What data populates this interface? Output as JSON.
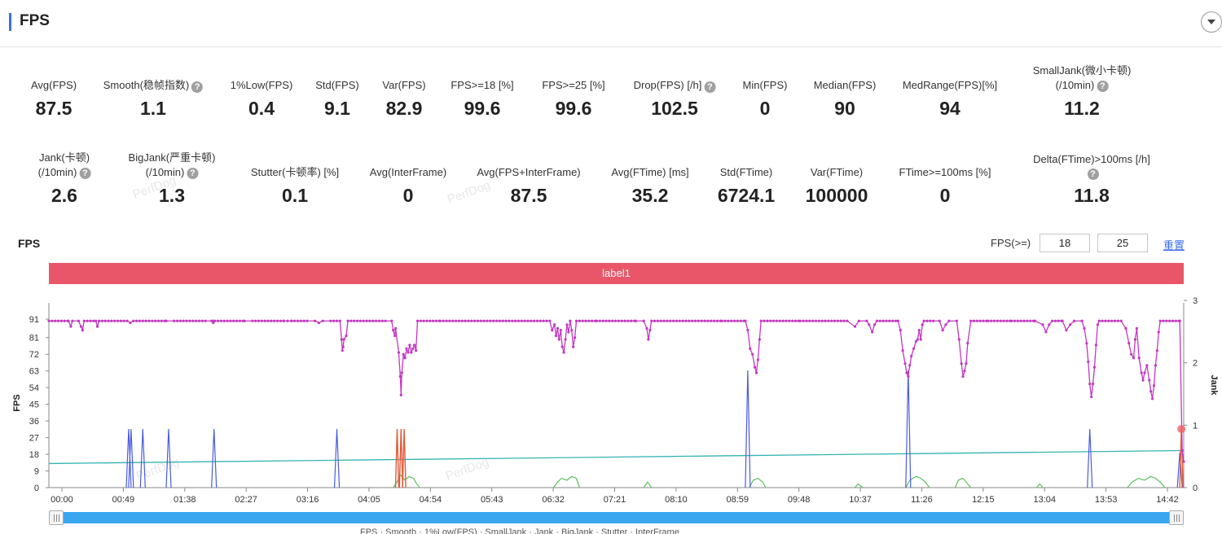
{
  "header": {
    "title": "FPS"
  },
  "metrics_row1": [
    {
      "label": "Avg(FPS)",
      "value": "87.5"
    },
    {
      "label": "Smooth(稳帧指数)",
      "value": "1.1",
      "help": true
    },
    {
      "label": "1%Low(FPS)",
      "value": "0.4"
    },
    {
      "label": "Std(FPS)",
      "value": "9.1"
    },
    {
      "label": "Var(FPS)",
      "value": "82.9"
    },
    {
      "label": "FPS>=18 [%]",
      "value": "99.6"
    },
    {
      "label": "FPS>=25 [%]",
      "value": "99.6"
    },
    {
      "label": "Drop(FPS) [/h]",
      "value": "102.5",
      "help": true
    },
    {
      "label": "Min(FPS)",
      "value": "0"
    },
    {
      "label": "Median(FPS)",
      "value": "90"
    },
    {
      "label": "MedRange(FPS)[%]",
      "value": "94"
    },
    {
      "label": "SmallJank(微小卡顿)",
      "label2": "(/10min)",
      "value": "11.2",
      "help": true
    }
  ],
  "metrics_row2": [
    {
      "label": "Jank(卡顿)",
      "label2": "(/10min)",
      "value": "2.6",
      "help": true
    },
    {
      "label": "BigJank(严重卡顿)",
      "label2": "(/10min)",
      "value": "1.3",
      "help": true
    },
    {
      "label": "Stutter(卡顿率) [%]",
      "value": "0.1"
    },
    {
      "label": "Avg(InterFrame)",
      "value": "0"
    },
    {
      "label": "Avg(FPS+InterFrame)",
      "value": "87.5"
    },
    {
      "label": "Avg(FTime) [ms]",
      "value": "35.2"
    },
    {
      "label": "Std(FTime)",
      "value": "6724.1"
    },
    {
      "label": "Var(FTime)",
      "value": "100000"
    },
    {
      "label": "FTime>=100ms [%]",
      "value": "0"
    },
    {
      "label": "Delta(FTime)>100ms [/h]",
      "value": "11.8",
      "help": true
    }
  ],
  "watermark": "PerfDog",
  "chart_section": {
    "title": "FPS",
    "threshold_label": "FPS(>=)",
    "threshold_1": "18",
    "threshold_2": "25",
    "reset_label": "重置",
    "label_bar": "label1"
  },
  "legend_strip": "FPS   ·   Smooth   ·   1%Low(FPS)   ·   SmallJank   ·   Jank   ·   BigJank   ·   Stutter   ·   InterFrame",
  "colors": {
    "fps": "#c438c0",
    "jank": "#4a5be0",
    "bigjank": "#e05a3a",
    "smooth": "#5cc05c",
    "trend": "#35b3b3",
    "label_bar": "#e9566a",
    "slider": "#3aa6ef"
  },
  "chart_data": {
    "type": "line",
    "xlabel": "",
    "ylabel": "FPS",
    "y2label": "Jank",
    "x_ticks": [
      "00:00",
      "00:49",
      "01:38",
      "02:27",
      "03:16",
      "04:05",
      "04:54",
      "05:43",
      "06:32",
      "07:21",
      "08:10",
      "08:59",
      "09:48",
      "10:37",
      "11:26",
      "12:15",
      "13:04",
      "13:53",
      "14:42"
    ],
    "y_ticks": [
      0,
      9,
      18,
      27,
      36,
      45,
      54,
      63,
      72,
      81,
      91
    ],
    "y2_ticks": [
      0,
      1,
      2,
      3
    ],
    "ylim": [
      0,
      91
    ],
    "y2lim": [
      0,
      3
    ],
    "x_range_seconds": [
      0,
      930
    ],
    "series": [
      {
        "name": "FPS",
        "color": "#c438c0",
        "points": [
          [
            0,
            90
          ],
          [
            25,
            90
          ],
          [
            28,
            87
          ],
          [
            30,
            90
          ],
          [
            38,
            90
          ],
          [
            41,
            87
          ],
          [
            43,
            85
          ],
          [
            45,
            90
          ],
          [
            60,
            90
          ],
          [
            62,
            87
          ],
          [
            64,
            90
          ],
          [
            100,
            90
          ],
          [
            104,
            89
          ],
          [
            108,
            90
          ],
          [
            150,
            90
          ],
          [
            160,
            90
          ],
          [
            200,
            90
          ],
          [
            210,
            90
          ],
          [
            250,
            90
          ],
          [
            260,
            90
          ],
          [
            300,
            90
          ],
          [
            310,
            90
          ],
          [
            208,
            90
          ],
          [
            210,
            89
          ],
          [
            212,
            90
          ],
          [
            300,
            90
          ],
          [
            305,
            90
          ],
          [
            310,
            90
          ],
          [
            330,
            90
          ],
          [
            340,
            90
          ],
          [
            345,
            89
          ],
          [
            350,
            90
          ],
          [
            360,
            90
          ],
          [
            372,
            90
          ],
          [
            374,
            80
          ],
          [
            375,
            74
          ],
          [
            376,
            76
          ],
          [
            377,
            80
          ],
          [
            380,
            82
          ],
          [
            382,
            90
          ],
          [
            410,
            90
          ],
          [
            430,
            90
          ],
          [
            438,
            90
          ],
          [
            440,
            85
          ],
          [
            442,
            82
          ],
          [
            443,
            86
          ],
          [
            447,
            73
          ],
          [
            449,
            60
          ],
          [
            450,
            50
          ],
          [
            451,
            62
          ],
          [
            453,
            72
          ],
          [
            455,
            70
          ],
          [
            457,
            75
          ],
          [
            459,
            73
          ],
          [
            461,
            77
          ],
          [
            463,
            73
          ],
          [
            465,
            75
          ],
          [
            467,
            77
          ],
          [
            469,
            74
          ],
          [
            471,
            90
          ],
          [
            500,
            90
          ],
          [
            560,
            90
          ],
          [
            600,
            90
          ],
          [
            640,
            90
          ],
          [
            643,
            85
          ],
          [
            646,
            88
          ],
          [
            648,
            82
          ],
          [
            650,
            86
          ],
          [
            652,
            80
          ],
          [
            654,
            85
          ],
          [
            656,
            76
          ],
          [
            658,
            73
          ],
          [
            660,
            80
          ],
          [
            662,
            88
          ],
          [
            664,
            84
          ],
          [
            666,
            90
          ],
          [
            668,
            85
          ],
          [
            670,
            76
          ],
          [
            672,
            81
          ],
          [
            674,
            90
          ],
          [
            700,
            90
          ],
          [
            750,
            90
          ],
          [
            760,
            90
          ],
          [
            764,
            86
          ],
          [
            766,
            80
          ],
          [
            768,
            85
          ],
          [
            770,
            90
          ],
          [
            830,
            90
          ],
          [
            860,
            90
          ],
          [
            890,
            90
          ],
          [
            893,
            85
          ],
          [
            896,
            75
          ],
          [
            899,
            72
          ],
          [
            902,
            65
          ],
          [
            904,
            62
          ],
          [
            906,
            69
          ],
          [
            908,
            80
          ],
          [
            910,
            90
          ],
          [
            960,
            90
          ],
          [
            1000,
            90
          ],
          [
            1020,
            90
          ],
          [
            1030,
            87
          ],
          [
            1035,
            90
          ],
          [
            1045,
            90
          ],
          [
            1048,
            88
          ],
          [
            1052,
            84
          ],
          [
            1055,
            88
          ],
          [
            1058,
            90
          ],
          [
            1085,
            90
          ],
          [
            1088,
            85
          ],
          [
            1091,
            74
          ],
          [
            1094,
            67
          ],
          [
            1096,
            62
          ],
          [
            1098,
            60
          ],
          [
            1100,
            66
          ],
          [
            1102,
            71
          ],
          [
            1105,
            75
          ],
          [
            1108,
            79
          ],
          [
            1110,
            80
          ],
          [
            1112,
            85
          ],
          [
            1114,
            80
          ],
          [
            1116,
            88
          ],
          [
            1118,
            90
          ],
          [
            1130,
            90
          ],
          [
            1138,
            90
          ],
          [
            1142,
            85
          ],
          [
            1146,
            88
          ],
          [
            1150,
            90
          ],
          [
            1160,
            90
          ],
          [
            1163,
            80
          ],
          [
            1166,
            67
          ],
          [
            1168,
            60
          ],
          [
            1170,
            63
          ],
          [
            1172,
            67
          ],
          [
            1174,
            78
          ],
          [
            1178,
            90
          ],
          [
            1200,
            90
          ],
          [
            1230,
            90
          ],
          [
            1260,
            90
          ],
          [
            1270,
            88
          ],
          [
            1274,
            84
          ],
          [
            1278,
            88
          ],
          [
            1282,
            90
          ],
          [
            1295,
            90
          ],
          [
            1300,
            85
          ],
          [
            1305,
            88
          ],
          [
            1310,
            90
          ],
          [
            1320,
            90
          ],
          [
            1323,
            86
          ],
          [
            1326,
            78
          ],
          [
            1328,
            68
          ],
          [
            1330,
            56
          ],
          [
            1332,
            49
          ],
          [
            1334,
            56
          ],
          [
            1336,
            65
          ],
          [
            1338,
            77
          ],
          [
            1340,
            88
          ],
          [
            1342,
            90
          ],
          [
            1370,
            90
          ],
          [
            1376,
            86
          ],
          [
            1380,
            78
          ],
          [
            1383,
            72
          ],
          [
            1386,
            70
          ],
          [
            1388,
            80
          ],
          [
            1390,
            86
          ],
          [
            1393,
            70
          ],
          [
            1396,
            62
          ],
          [
            1398,
            58
          ],
          [
            1400,
            62
          ],
          [
            1403,
            66
          ],
          [
            1406,
            58
          ],
          [
            1408,
            52
          ],
          [
            1410,
            48
          ],
          [
            1412,
            55
          ],
          [
            1414,
            66
          ],
          [
            1416,
            74
          ],
          [
            1418,
            84
          ],
          [
            1420,
            90
          ],
          [
            1445,
            90
          ],
          [
            1448,
            20
          ],
          [
            1450,
            14
          ]
        ]
      },
      {
        "name": "Jank",
        "color": "#4a5be0",
        "spikes_y2": [
          [
            102,
            1
          ],
          [
            105,
            1
          ],
          [
            120,
            1
          ],
          [
            153,
            1
          ],
          [
            211,
            1
          ],
          [
            368,
            1
          ],
          [
            893,
            2
          ],
          [
            1098,
            2
          ],
          [
            1330,
            1
          ],
          [
            1445,
            0.6
          ]
        ]
      },
      {
        "name": "BigJank",
        "color": "#e05a3a",
        "spikes_y2": [
          [
            445,
            1
          ],
          [
            450,
            1
          ],
          [
            454,
            1
          ],
          [
            1447,
            1
          ]
        ]
      },
      {
        "name": "Smooth",
        "color": "#5cc05c",
        "segments": [
          [
            [
              440,
              0
            ],
            [
              445,
              3
            ],
            [
              449,
              7
            ],
            [
              455,
              4
            ],
            [
              460,
              6
            ],
            [
              466,
              5
            ],
            [
              470,
              2
            ],
            [
              474,
              0
            ]
          ],
          [
            [
              645,
              0
            ],
            [
              650,
              3
            ],
            [
              655,
              5
            ],
            [
              662,
              4
            ],
            [
              668,
              6
            ],
            [
              674,
              5
            ],
            [
              678,
              0
            ]
          ],
          [
            [
              760,
              0
            ],
            [
              765,
              3
            ],
            [
              770,
              0
            ]
          ],
          [
            [
              895,
              0
            ],
            [
              900,
              4
            ],
            [
              906,
              5
            ],
            [
              912,
              3
            ],
            [
              916,
              0
            ]
          ],
          [
            [
              1030,
              0
            ],
            [
              1034,
              2
            ],
            [
              1040,
              0
            ]
          ],
          [
            [
              1095,
              0
            ],
            [
              1100,
              4
            ],
            [
              1108,
              6
            ],
            [
              1114,
              5
            ],
            [
              1120,
              3
            ],
            [
              1125,
              0
            ]
          ],
          [
            [
              1158,
              0
            ],
            [
              1162,
              4
            ],
            [
              1168,
              5
            ],
            [
              1174,
              2
            ],
            [
              1178,
              0
            ]
          ],
          [
            [
              1262,
              0
            ],
            [
              1266,
              2
            ],
            [
              1270,
              0
            ]
          ],
          [
            [
              1378,
              0
            ],
            [
              1384,
              3
            ],
            [
              1392,
              5
            ],
            [
              1400,
              4
            ],
            [
              1408,
              6
            ],
            [
              1414,
              5
            ],
            [
              1420,
              3
            ],
            [
              1426,
              0
            ]
          ]
        ]
      },
      {
        "name": "Trend",
        "color": "#35b3b3",
        "points": [
          [
            0,
            13
          ],
          [
            1450,
            20
          ]
        ]
      }
    ]
  }
}
